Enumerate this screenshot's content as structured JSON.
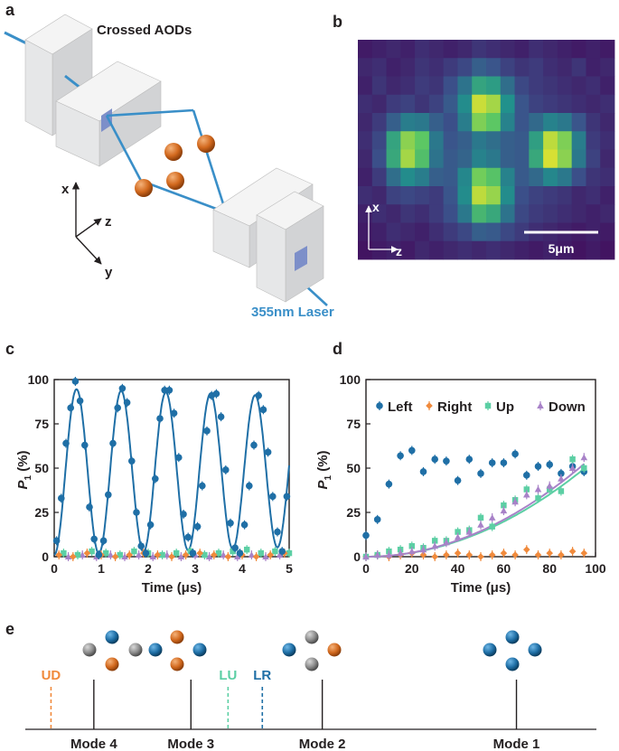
{
  "panel_labels": {
    "a": "a",
    "b": "b",
    "c": "c",
    "d": "d",
    "e": "e"
  },
  "panel_a": {
    "title": "Crossed AODs",
    "laser_label": "355nm Laser",
    "axis_x": "x",
    "axis_y": "y",
    "axis_z": "z",
    "colors": {
      "ion": "#d2691e",
      "beam": "#3a8fc8",
      "block": "#e6e7e8",
      "aperture": "#7d8fc9"
    }
  },
  "panel_b": {
    "axis_x": "x",
    "axis_z": "z",
    "scalebar_label": "5μm",
    "grid": [
      [
        0.08,
        0.1,
        0.12,
        0.1,
        0.14,
        0.12,
        0.1,
        0.12,
        0.16,
        0.14,
        0.12,
        0.1,
        0.14,
        0.12,
        0.1,
        0.08,
        0.1,
        0.08
      ],
      [
        0.12,
        0.14,
        0.1,
        0.12,
        0.16,
        0.14,
        0.18,
        0.22,
        0.3,
        0.26,
        0.2,
        0.16,
        0.18,
        0.14,
        0.12,
        0.16,
        0.1,
        0.12
      ],
      [
        0.1,
        0.16,
        0.12,
        0.14,
        0.18,
        0.16,
        0.24,
        0.38,
        0.58,
        0.55,
        0.36,
        0.22,
        0.18,
        0.16,
        0.14,
        0.12,
        0.14,
        0.1
      ],
      [
        0.14,
        0.12,
        0.18,
        0.2,
        0.16,
        0.2,
        0.28,
        0.48,
        0.92,
        0.86,
        0.5,
        0.26,
        0.2,
        0.18,
        0.16,
        0.14,
        0.12,
        0.14
      ],
      [
        0.12,
        0.18,
        0.3,
        0.42,
        0.4,
        0.3,
        0.24,
        0.42,
        0.8,
        0.74,
        0.44,
        0.26,
        0.34,
        0.44,
        0.4,
        0.26,
        0.16,
        0.12
      ],
      [
        0.14,
        0.22,
        0.58,
        0.82,
        0.74,
        0.4,
        0.26,
        0.3,
        0.4,
        0.36,
        0.3,
        0.28,
        0.56,
        0.9,
        0.8,
        0.42,
        0.18,
        0.14
      ],
      [
        0.12,
        0.24,
        0.6,
        0.86,
        0.7,
        0.38,
        0.28,
        0.32,
        0.44,
        0.4,
        0.3,
        0.28,
        0.6,
        0.94,
        0.82,
        0.4,
        0.2,
        0.12
      ],
      [
        0.1,
        0.18,
        0.36,
        0.48,
        0.42,
        0.3,
        0.28,
        0.46,
        0.78,
        0.72,
        0.44,
        0.28,
        0.34,
        0.46,
        0.4,
        0.24,
        0.16,
        0.14
      ],
      [
        0.14,
        0.12,
        0.2,
        0.22,
        0.2,
        0.18,
        0.26,
        0.48,
        0.9,
        0.84,
        0.48,
        0.24,
        0.2,
        0.18,
        0.16,
        0.12,
        0.14,
        0.1
      ],
      [
        0.1,
        0.14,
        0.12,
        0.16,
        0.14,
        0.18,
        0.24,
        0.4,
        0.66,
        0.6,
        0.38,
        0.22,
        0.18,
        0.16,
        0.14,
        0.12,
        0.1,
        0.12
      ],
      [
        0.08,
        0.1,
        0.14,
        0.12,
        0.1,
        0.14,
        0.18,
        0.22,
        0.3,
        0.28,
        0.22,
        0.18,
        0.14,
        0.12,
        0.1,
        0.08,
        0.1,
        0.08
      ],
      [
        0.06,
        0.08,
        0.1,
        0.08,
        0.12,
        0.1,
        0.12,
        0.14,
        0.12,
        0.14,
        0.12,
        0.1,
        0.08,
        0.1,
        0.08,
        0.06,
        0.08,
        0.06
      ]
    ]
  },
  "chart_data": [
    {
      "panel": "c",
      "type": "scatter",
      "xlabel": "Time (μs)",
      "ylabel": "P1 (%)",
      "ylabel_main": "P",
      "ylabel_sub": "1",
      "ylabel_unit": " (%)",
      "xlim": [
        0,
        5
      ],
      "ylim": [
        0,
        100
      ],
      "xticks": [
        "0",
        "1",
        "2",
        "3",
        "4",
        "5"
      ],
      "yticks": [
        "0",
        "25",
        "50",
        "75",
        "100"
      ],
      "fit": {
        "amplitude": 47,
        "offset": 48,
        "period": 0.95,
        "decay": 0.02
      },
      "series": [
        {
          "name": "Left",
          "color": "#1f6fa6",
          "x": [
            0.05,
            0.15,
            0.25,
            0.35,
            0.45,
            0.55,
            0.65,
            0.75,
            0.85,
            0.95,
            1.05,
            1.15,
            1.25,
            1.35,
            1.45,
            1.55,
            1.65,
            1.75,
            1.85,
            1.95,
            2.05,
            2.15,
            2.25,
            2.35,
            2.45,
            2.55,
            2.65,
            2.75,
            2.85,
            2.95,
            3.05,
            3.15,
            3.25,
            3.35,
            3.45,
            3.55,
            3.65,
            3.75,
            3.85,
            3.95,
            4.05,
            4.15,
            4.25,
            4.35,
            4.45,
            4.55,
            4.65,
            4.75,
            4.85,
            4.95
          ],
          "y": [
            9,
            33,
            64,
            84,
            99,
            88,
            63,
            28,
            10,
            1,
            9,
            35,
            64,
            84,
            95,
            87,
            54,
            25,
            6,
            2,
            18,
            44,
            78,
            94,
            94,
            81,
            56,
            24,
            11,
            2,
            17,
            40,
            71,
            91,
            92,
            79,
            49,
            19,
            5,
            2,
            18,
            40,
            63,
            91,
            83,
            59,
            34,
            14,
            3,
            34
          ]
        },
        {
          "name": "Right",
          "color": "#f08a3c",
          "x": [
            0.1,
            0.4,
            0.7,
            1.0,
            1.3,
            1.6,
            1.9,
            2.2,
            2.5,
            2.8,
            3.1,
            3.4,
            3.7,
            4.0,
            4.3,
            4.6,
            4.9
          ],
          "y": [
            1,
            0,
            2,
            1,
            0,
            1,
            2,
            1,
            0,
            1,
            2,
            1,
            0,
            1,
            0,
            1,
            2
          ]
        },
        {
          "name": "Up",
          "color": "#5ccfa4",
          "x": [
            0.2,
            0.5,
            0.8,
            1.1,
            1.4,
            1.7,
            2.0,
            2.3,
            2.6,
            2.9,
            3.2,
            3.5,
            3.8,
            4.1,
            4.4,
            4.7,
            5.0
          ],
          "y": [
            2,
            1,
            3,
            2,
            1,
            3,
            2,
            1,
            2,
            3,
            1,
            2,
            3,
            4,
            2,
            3,
            2
          ]
        },
        {
          "name": "Down",
          "color": "#a882c8",
          "x": [
            0.3,
            0.6,
            0.9,
            1.2,
            1.5,
            1.8,
            2.1,
            2.4,
            2.7,
            3.0,
            3.3,
            3.6,
            3.9,
            4.2,
            4.5,
            4.8
          ],
          "y": [
            0,
            1,
            0,
            1,
            0,
            1,
            0,
            1,
            0,
            1,
            0,
            1,
            0,
            1,
            0,
            1
          ]
        }
      ]
    },
    {
      "panel": "d",
      "type": "scatter",
      "xlabel": "Time (μs)",
      "ylabel": "P1 (%)",
      "ylabel_main": "P",
      "ylabel_sub": "1",
      "ylabel_unit": " (%)",
      "xlim": [
        0,
        100
      ],
      "ylim": [
        0,
        100
      ],
      "xticks": [
        "0",
        "20",
        "40",
        "60",
        "80",
        "100"
      ],
      "yticks": [
        "0",
        "25",
        "50",
        "75",
        "100"
      ],
      "legend": [
        "Left",
        "Right",
        "Up",
        "Down"
      ],
      "series": [
        {
          "name": "Left",
          "color": "#1f6fa6",
          "x": [
            0,
            5,
            10,
            15,
            20,
            25,
            30,
            35,
            40,
            45,
            50,
            55,
            60,
            65,
            70,
            75,
            80,
            85,
            90,
            95
          ],
          "y": [
            12,
            21,
            41,
            57,
            60,
            48,
            55,
            54,
            43,
            55,
            47,
            53,
            53,
            58,
            46,
            51,
            52,
            47,
            51,
            48
          ]
        },
        {
          "name": "Right",
          "color": "#f08a3c",
          "x": [
            0,
            5,
            10,
            15,
            20,
            25,
            30,
            35,
            40,
            45,
            50,
            55,
            60,
            65,
            70,
            75,
            80,
            85,
            90,
            95
          ],
          "y": [
            0,
            1,
            0,
            1,
            2,
            1,
            0,
            1,
            2,
            1,
            0,
            1,
            2,
            1,
            4,
            1,
            2,
            1,
            3,
            2
          ]
        },
        {
          "name": "Up",
          "color": "#5ccfa4",
          "x": [
            0,
            5,
            10,
            15,
            20,
            25,
            30,
            35,
            40,
            45,
            50,
            55,
            60,
            65,
            70,
            75,
            80,
            85,
            90,
            95
          ],
          "y": [
            0,
            1,
            3,
            4,
            6,
            5,
            9,
            9,
            14,
            15,
            22,
            17,
            29,
            32,
            38,
            33,
            38,
            37,
            55,
            50
          ]
        },
        {
          "name": "Down",
          "color": "#a882c8",
          "x": [
            0,
            5,
            10,
            15,
            20,
            25,
            30,
            35,
            40,
            45,
            50,
            55,
            60,
            65,
            70,
            75,
            80,
            85,
            90,
            95
          ],
          "y": [
            0,
            1,
            1,
            2,
            3,
            4,
            6,
            8,
            11,
            14,
            18,
            22,
            26,
            31,
            35,
            38,
            40,
            44,
            50,
            56
          ]
        }
      ],
      "fits": [
        {
          "name": "Up",
          "color": "#5ccfa4",
          "coef": 0.0055
        },
        {
          "name": "Down",
          "color": "#a882c8",
          "coef": 0.0058
        }
      ]
    }
  ],
  "panel_e": {
    "modes": [
      {
        "label": "Mode 4",
        "pos": 0.12
      },
      {
        "label": "Mode 3",
        "pos": 0.29
      },
      {
        "label": "Mode 2",
        "pos": 0.52
      },
      {
        "label": "Mode 1",
        "pos": 0.86
      }
    ],
    "dashed": [
      {
        "label": "UD",
        "pos": 0.045,
        "color": "#f08a3c"
      },
      {
        "label": "LU",
        "pos": 0.355,
        "color": "#5ccfa4"
      },
      {
        "label": "LR",
        "pos": 0.415,
        "color": "#1f6fa6"
      }
    ],
    "colors": {
      "blue": "#1f6fa6",
      "orange": "#d2691e",
      "gray": "#8c8c8c"
    }
  }
}
